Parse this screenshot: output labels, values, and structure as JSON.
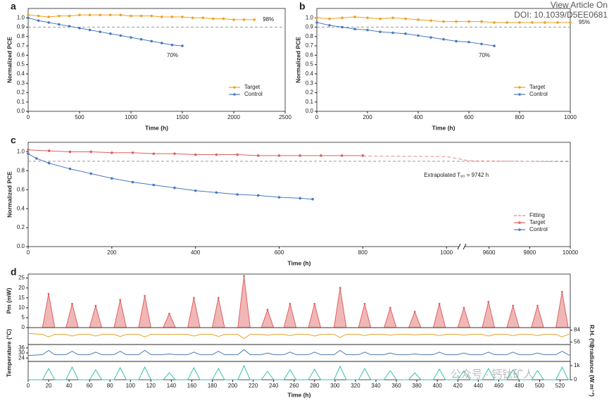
{
  "header": {
    "link": "View Article On",
    "doi": "DOI: 10.1039/D5EE0681",
    "watermark": "公众号 · 钙钛矿人"
  },
  "chart_data": [
    {
      "type": "line",
      "label": "a",
      "xlabel": "Time (h)",
      "ylabel": "Normalized PCE",
      "xlim": [
        0,
        2500
      ],
      "xticks": [
        0,
        500,
        1000,
        1500,
        2000,
        2500
      ],
      "ylim": [
        0,
        1.1
      ],
      "yticks": [
        {
          "value": 0,
          "label": "0.0"
        },
        0.1,
        0.2,
        0.3,
        0.4,
        0.5,
        0.6,
        0.7,
        0.8,
        0.9,
        {
          "value": 1,
          "label": "1.0"
        }
      ],
      "reference_line": 0.9,
      "legend": "lower right",
      "series": [
        {
          "name": "Target",
          "color": "#f0a020",
          "end_label": "98%",
          "x": [
            0,
            100,
            200,
            300,
            400,
            500,
            600,
            700,
            800,
            900,
            1000,
            1100,
            1200,
            1300,
            1400,
            1500,
            1600,
            1700,
            1800,
            1900,
            2000,
            2100,
            2200
          ],
          "values": [
            1.03,
            1.02,
            1.01,
            1.02,
            1.02,
            1.03,
            1.03,
            1.03,
            1.03,
            1.03,
            1.02,
            1.02,
            1.02,
            1.01,
            1.01,
            1.01,
            1.0,
            1.0,
            0.99,
            0.99,
            0.98,
            0.98,
            0.98
          ]
        },
        {
          "name": "Control",
          "color": "#4a78c0",
          "end_label": "70%",
          "x": [
            0,
            100,
            200,
            300,
            400,
            500,
            600,
            700,
            800,
            900,
            1000,
            1100,
            1200,
            1300,
            1400,
            1500
          ],
          "values": [
            1.0,
            0.97,
            0.95,
            0.93,
            0.91,
            0.89,
            0.87,
            0.85,
            0.83,
            0.81,
            0.79,
            0.77,
            0.75,
            0.73,
            0.71,
            0.7
          ]
        }
      ]
    },
    {
      "type": "line",
      "label": "b",
      "xlabel": "Time (h)",
      "ylabel": "Normalized PCE",
      "xlim": [
        0,
        1000
      ],
      "xticks": [
        0,
        200,
        400,
        600,
        800,
        1000
      ],
      "ylim": [
        0,
        1.1
      ],
      "yticks": [
        {
          "value": 0,
          "label": "0.0"
        },
        0.1,
        0.2,
        0.3,
        0.4,
        0.5,
        0.6,
        0.7,
        0.8,
        0.9,
        {
          "value": 1,
          "label": "1.0"
        }
      ],
      "reference_line": 0.9,
      "legend": "lower right",
      "series": [
        {
          "name": "Target",
          "color": "#f0a020",
          "end_label": "95%",
          "x": [
            0,
            50,
            100,
            150,
            200,
            250,
            300,
            350,
            400,
            450,
            500,
            550,
            600,
            650,
            700,
            750,
            800,
            850,
            900,
            950,
            1000
          ],
          "values": [
            1.0,
            0.99,
            1.0,
            1.01,
            1.0,
            0.99,
            1.0,
            0.99,
            0.98,
            0.97,
            0.96,
            0.96,
            0.96,
            0.96,
            0.95,
            0.95,
            0.95,
            0.95,
            0.95,
            0.95,
            0.95
          ]
        },
        {
          "name": "Control",
          "color": "#4a78c0",
          "end_label": "70%",
          "x": [
            0,
            50,
            100,
            150,
            200,
            250,
            300,
            350,
            400,
            450,
            500,
            550,
            600,
            650,
            700
          ],
          "values": [
            0.95,
            0.92,
            0.9,
            0.88,
            0.87,
            0.85,
            0.84,
            0.83,
            0.81,
            0.79,
            0.77,
            0.75,
            0.74,
            0.72,
            0.7
          ]
        }
      ]
    },
    {
      "type": "line",
      "label": "c",
      "xlabel": "Time (h)",
      "ylabel": "Normalized PCE",
      "xlim": [
        0,
        10000
      ],
      "x_break": [
        1030,
        9480
      ],
      "xticks": [
        0,
        200,
        400,
        600,
        800,
        1000,
        9600,
        9800,
        10000
      ],
      "ylim": [
        0,
        1.1
      ],
      "yticks": [
        {
          "value": 0,
          "label": "0.0"
        },
        0.2,
        0.4,
        0.6,
        0.8,
        {
          "value": 1,
          "label": "1.0"
        }
      ],
      "reference_line": 0.9,
      "legend": "lower right",
      "annotation": "Extrapolated T₉₀ = 9742 h",
      "series": [
        {
          "name": "Fitting",
          "color": "#e88888",
          "dash": true,
          "marker": false,
          "x": [
            800,
            1000,
            9500,
            10000
          ],
          "values": [
            0.955,
            0.95,
            0.905,
            0.895
          ]
        },
        {
          "name": "Target",
          "color": "#e06060",
          "x": [
            0,
            50,
            100,
            150,
            200,
            250,
            300,
            350,
            400,
            450,
            500,
            550,
            600,
            650,
            700,
            750,
            800
          ],
          "values": [
            1.02,
            1.01,
            1.0,
            1.0,
            0.99,
            0.99,
            0.98,
            0.98,
            0.97,
            0.97,
            0.97,
            0.96,
            0.96,
            0.96,
            0.96,
            0.96,
            0.96
          ]
        },
        {
          "name": "Control",
          "color": "#4a78c0",
          "x": [
            0,
            20,
            50,
            100,
            150,
            200,
            250,
            300,
            350,
            400,
            450,
            500,
            550,
            600,
            650,
            680
          ],
          "values": [
            0.98,
            0.93,
            0.88,
            0.82,
            0.77,
            0.72,
            0.68,
            0.65,
            0.62,
            0.59,
            0.57,
            0.55,
            0.54,
            0.52,
            0.51,
            0.5
          ]
        }
      ]
    },
    {
      "type": "stacked-panels",
      "label": "d",
      "xlabel": "Time (h)",
      "xlim": [
        0,
        530
      ],
      "xticks": [
        0,
        20,
        40,
        60,
        80,
        100,
        120,
        140,
        160,
        180,
        200,
        220,
        240,
        260,
        280,
        300,
        320,
        340,
        360,
        380,
        400,
        420,
        440,
        460,
        480,
        500,
        520
      ],
      "x": [
        0,
        14,
        20,
        26,
        37,
        43,
        49,
        60,
        66,
        72,
        84,
        90,
        96,
        108,
        114,
        120,
        132,
        138,
        144,
        156,
        162,
        168,
        180,
        186,
        192,
        205,
        211,
        217,
        228,
        234,
        240,
        250,
        256,
        262,
        274,
        280,
        286,
        299,
        305,
        311,
        323,
        329,
        335,
        348,
        354,
        360,
        372,
        378,
        384,
        396,
        402,
        408,
        420,
        426,
        432,
        444,
        450,
        456,
        468,
        474,
        480,
        492,
        498,
        504,
        516,
        522,
        528,
        530
      ],
      "panels": [
        {
          "type": "area",
          "ylabel": "Pm (mW)",
          "side": "left",
          "ylim": [
            0,
            27
          ],
          "yticks": [
            0,
            5,
            10,
            15,
            20,
            25
          ],
          "color": "#e06060",
          "values": [
            0,
            0,
            17,
            0,
            0,
            12,
            0,
            0,
            11,
            0,
            0,
            14,
            0,
            0,
            16,
            0,
            0,
            7,
            0,
            0,
            15,
            0,
            0,
            15,
            0,
            0,
            26,
            0,
            0,
            9,
            0,
            0,
            12,
            0,
            0,
            12,
            0,
            0,
            20,
            0,
            0,
            12,
            0,
            0,
            10,
            0,
            0,
            8,
            0,
            0,
            12,
            0,
            0,
            10,
            0,
            0,
            13,
            0,
            0,
            11,
            0,
            0,
            11,
            0,
            0,
            18,
            0,
            0
          ]
        },
        {
          "type": "line",
          "ylabel": "R.H. (%)",
          "side": "right",
          "ylim": [
            50,
            90
          ],
          "yticks": [
            56,
            84
          ],
          "color": "#e8a030",
          "values": [
            76,
            74,
            68,
            74,
            74,
            70,
            74,
            74,
            70,
            74,
            74,
            69,
            74,
            74,
            68,
            74,
            74,
            74,
            74,
            74,
            70,
            74,
            74,
            69,
            74,
            74,
            64,
            74,
            74,
            72,
            74,
            74,
            71,
            74,
            74,
            70,
            74,
            74,
            67,
            74,
            74,
            71,
            74,
            74,
            72,
            74,
            74,
            73,
            74,
            74,
            71,
            74,
            74,
            72,
            74,
            74,
            70,
            74,
            74,
            71,
            74,
            74,
            71,
            74,
            74,
            68,
            74,
            76
          ]
        },
        {
          "type": "line",
          "ylabel": "Temperature (°C)",
          "side": "left",
          "ylim": [
            20,
            40
          ],
          "yticks": [
            24,
            30,
            36
          ],
          "color": "#4a78b5",
          "values": [
            27,
            28,
            33,
            28,
            28,
            32,
            28,
            28,
            31,
            28,
            28,
            32,
            28,
            28,
            33,
            28,
            28,
            29,
            28,
            28,
            31,
            28,
            28,
            32,
            28,
            28,
            34,
            28,
            28,
            30,
            28,
            28,
            31,
            28,
            28,
            31,
            28,
            28,
            33,
            28,
            28,
            31,
            28,
            28,
            30,
            28,
            28,
            29,
            28,
            28,
            31,
            28,
            28,
            30,
            28,
            28,
            31,
            28,
            28,
            31,
            28,
            28,
            30,
            28,
            28,
            32,
            28,
            27
          ]
        },
        {
          "type": "line",
          "ylabel": "Irradiance (W m⁻²)",
          "side": "right",
          "ylim": [
            0,
            1300
          ],
          "yticks": [
            0,
            {
              "value": 1000,
              "label": "1k"
            }
          ],
          "color": "#3bbfb0",
          "values": [
            0,
            0,
            800,
            0,
            0,
            900,
            0,
            0,
            700,
            0,
            0,
            850,
            0,
            0,
            900,
            0,
            0,
            500,
            0,
            0,
            850,
            0,
            0,
            800,
            0,
            0,
            1000,
            0,
            0,
            600,
            0,
            0,
            700,
            0,
            0,
            750,
            0,
            0,
            950,
            0,
            0,
            800,
            0,
            0,
            650,
            0,
            0,
            500,
            0,
            0,
            750,
            0,
            0,
            650,
            0,
            0,
            800,
            0,
            0,
            700,
            0,
            0,
            650,
            0,
            0,
            900,
            0,
            0
          ]
        }
      ]
    }
  ]
}
